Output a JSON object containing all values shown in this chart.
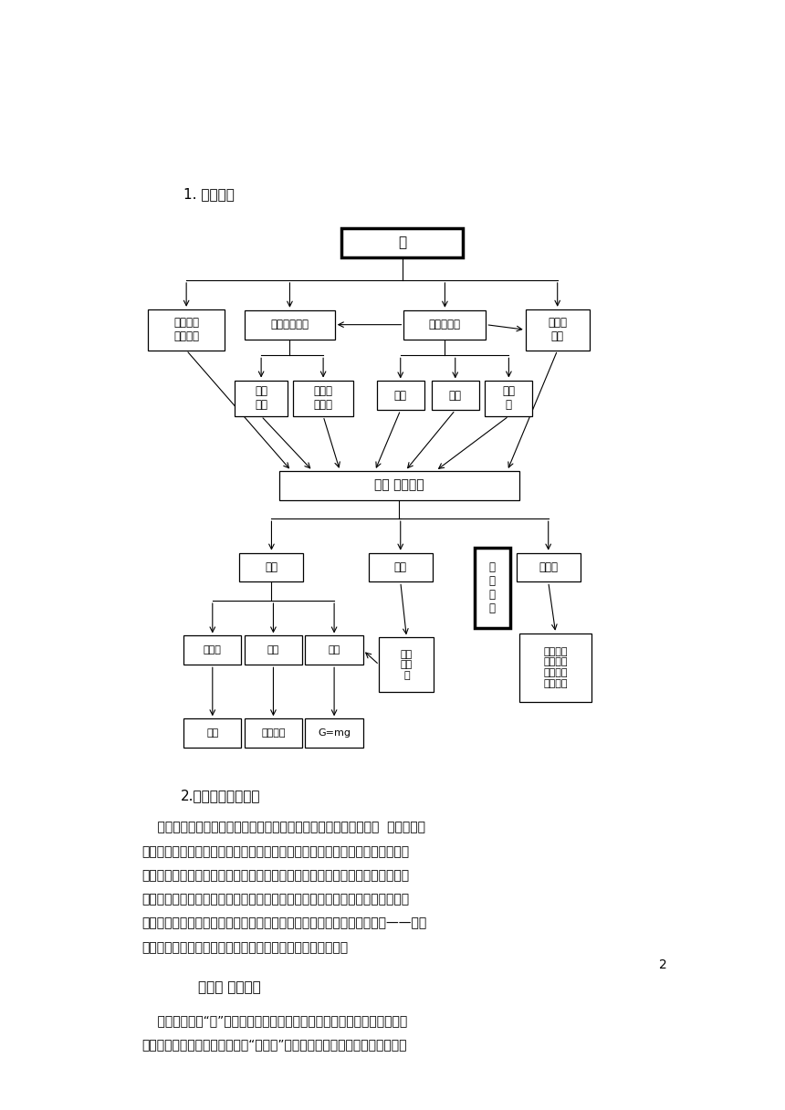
{
  "page_bg": "#ffffff",
  "section1_label": "1. 知识框架",
  "section2_label": "2.内容内在逻辑分析",
  "section3_label": "（三）学情分析",
  "page_num": "2",
  "font_family": "SimSun"
}
